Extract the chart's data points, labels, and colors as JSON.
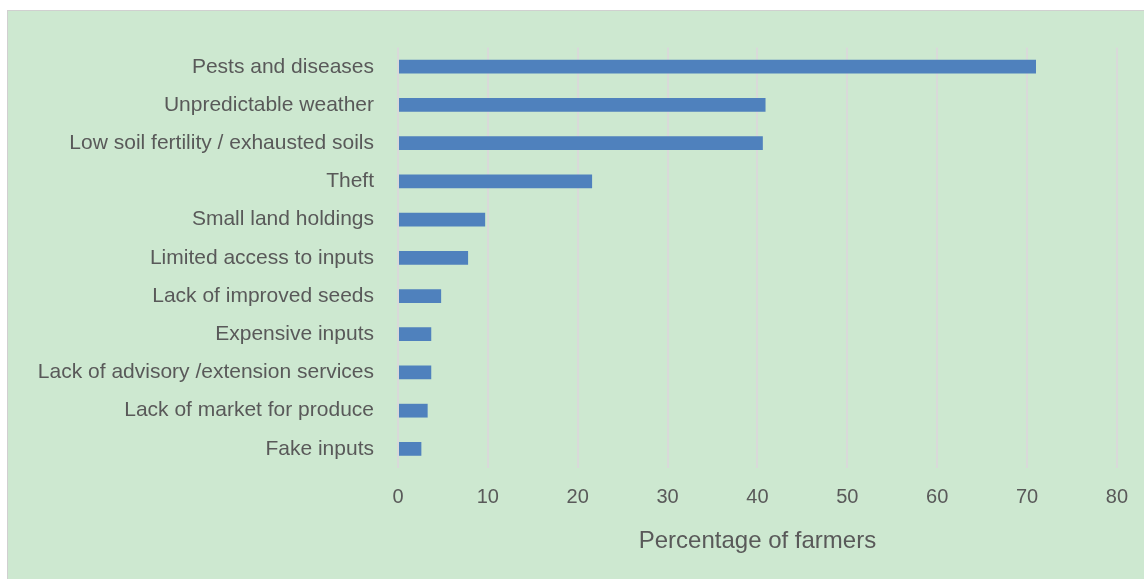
{
  "chart_data": {
    "type": "bar",
    "orientation": "horizontal",
    "categories": [
      "Pests and diseases",
      "Unpredictable weather",
      "Low soil fertility / exhausted soils",
      "Theft",
      "Small land holdings",
      "Limited access to inputs",
      "Lack of improved seeds",
      "Expensive inputs",
      "Lack of advisory /extension services",
      "Lack of market for produce",
      "Fake inputs"
    ],
    "values": [
      71,
      40.9,
      40.6,
      21.6,
      9.7,
      7.8,
      4.8,
      3.7,
      3.7,
      3.3,
      2.6
    ],
    "color": "#4f81bd",
    "xlabel": "Percentage of farmers",
    "xlim": [
      0,
      80
    ],
    "xticks": [
      0,
      10,
      20,
      30,
      40,
      50,
      60,
      70,
      80
    ],
    "grid": "x"
  }
}
